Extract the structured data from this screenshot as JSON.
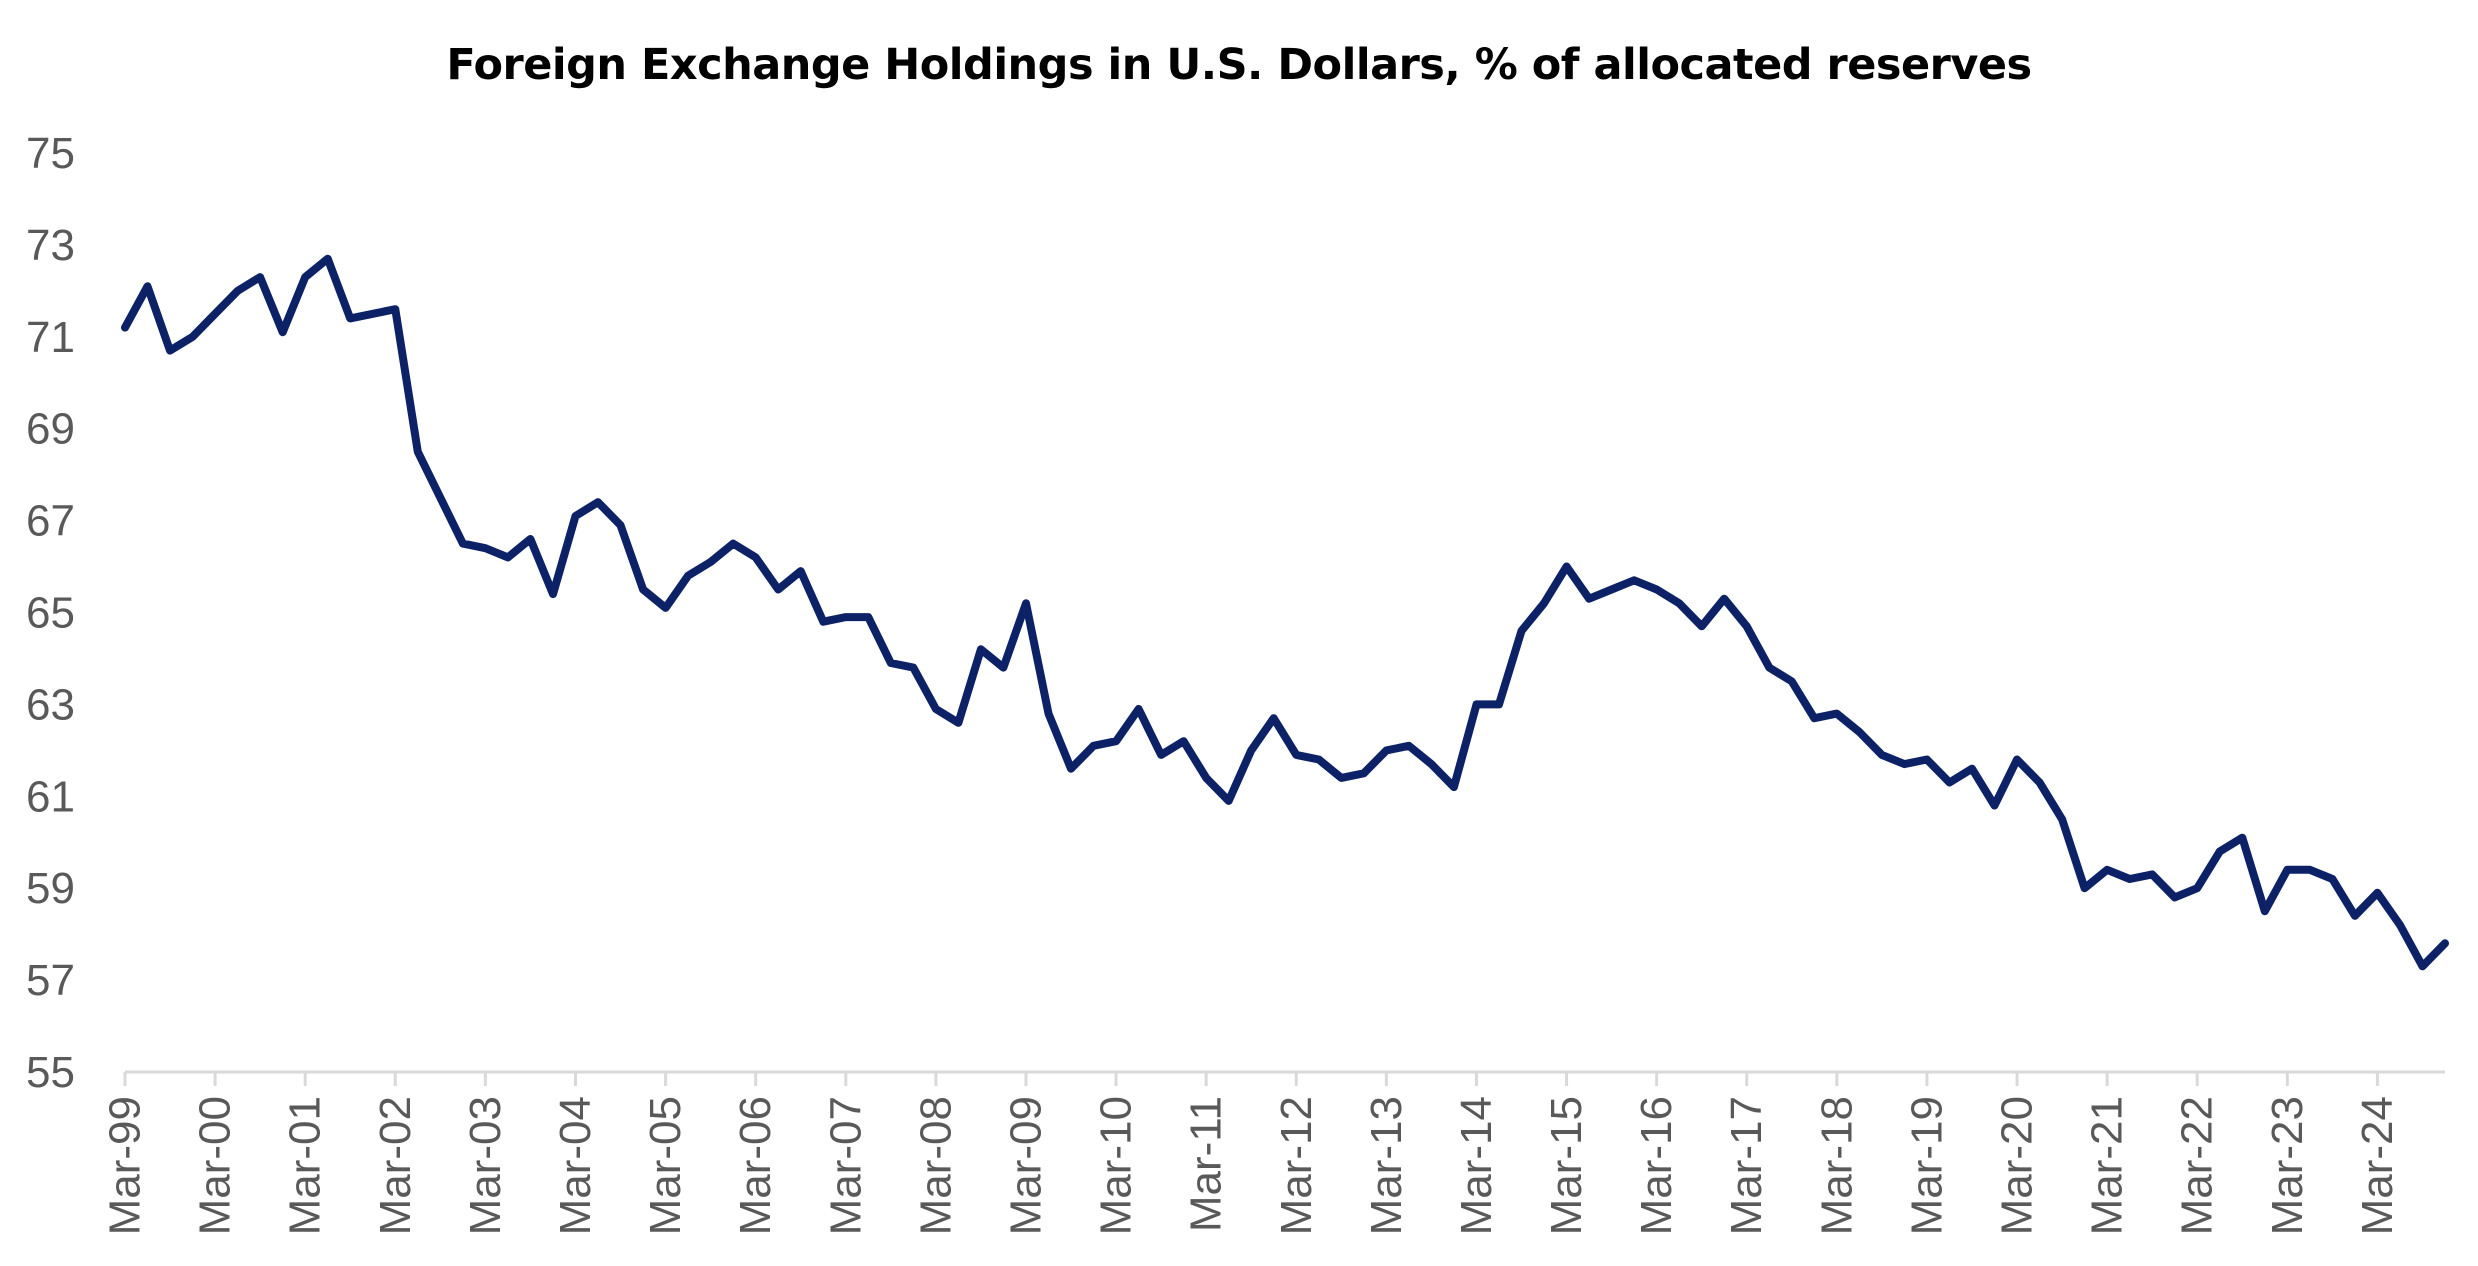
{
  "chart_data": {
    "type": "line",
    "title": "Foreign Exchange Holdings in U.S. Dollars, % of allocated reserves",
    "xlabel": "",
    "ylabel": "",
    "ylim": [
      55,
      75
    ],
    "y_ticks": [
      55,
      57,
      59,
      61,
      63,
      65,
      67,
      69,
      71,
      73,
      75
    ],
    "x_tick_labels": [
      "Mar-99",
      "Mar-00",
      "Mar-01",
      "Mar-02",
      "Mar-03",
      "Mar-04",
      "Mar-05",
      "Mar-06",
      "Mar-07",
      "Mar-08",
      "Mar-09",
      "Mar-10",
      "Mar-11",
      "Mar-12",
      "Mar-13",
      "Mar-14",
      "Mar-15",
      "Mar-16",
      "Mar-17",
      "Mar-18",
      "Mar-19",
      "Mar-20",
      "Mar-21",
      "Mar-22",
      "Mar-23",
      "Mar-24"
    ],
    "frequency": "quarterly",
    "first_period": "Mar-99",
    "grid": false,
    "legend": "none",
    "line_color": "#0D2266",
    "axis_color": "#D9D9D9",
    "series": [
      {
        "values": [
          71.2,
          72.1,
          70.7,
          71.0,
          71.5,
          72.0,
          72.3,
          71.1,
          72.3,
          72.7,
          71.4,
          71.5,
          71.6,
          68.5,
          67.5,
          66.5,
          66.4,
          66.2,
          66.6,
          65.4,
          67.1,
          67.4,
          66.9,
          65.5,
          65.1,
          65.8,
          66.1,
          66.5,
          66.2,
          65.5,
          65.9,
          64.8,
          64.9,
          64.9,
          63.9,
          63.8,
          62.9,
          62.6,
          64.2,
          63.8,
          65.2,
          62.8,
          61.6,
          62.1,
          62.2,
          62.9,
          61.9,
          62.2,
          61.4,
          60.9,
          62.0,
          62.7,
          61.9,
          61.8,
          61.4,
          61.5,
          62.0,
          62.1,
          61.7,
          61.2,
          63.0,
          63.0,
          64.6,
          65.2,
          66.0,
          65.3,
          65.5,
          65.7,
          65.5,
          65.2,
          64.7,
          65.3,
          64.7,
          63.8,
          63.5,
          62.7,
          62.8,
          62.4,
          61.9,
          61.7,
          61.8,
          61.3,
          61.6,
          60.8,
          61.8,
          61.3,
          60.5,
          59.0,
          59.4,
          59.2,
          59.3,
          58.8,
          59.0,
          59.8,
          60.1,
          58.5,
          59.4,
          59.4,
          59.2,
          58.4,
          58.9,
          58.2,
          57.3,
          57.8
        ]
      }
    ]
  }
}
